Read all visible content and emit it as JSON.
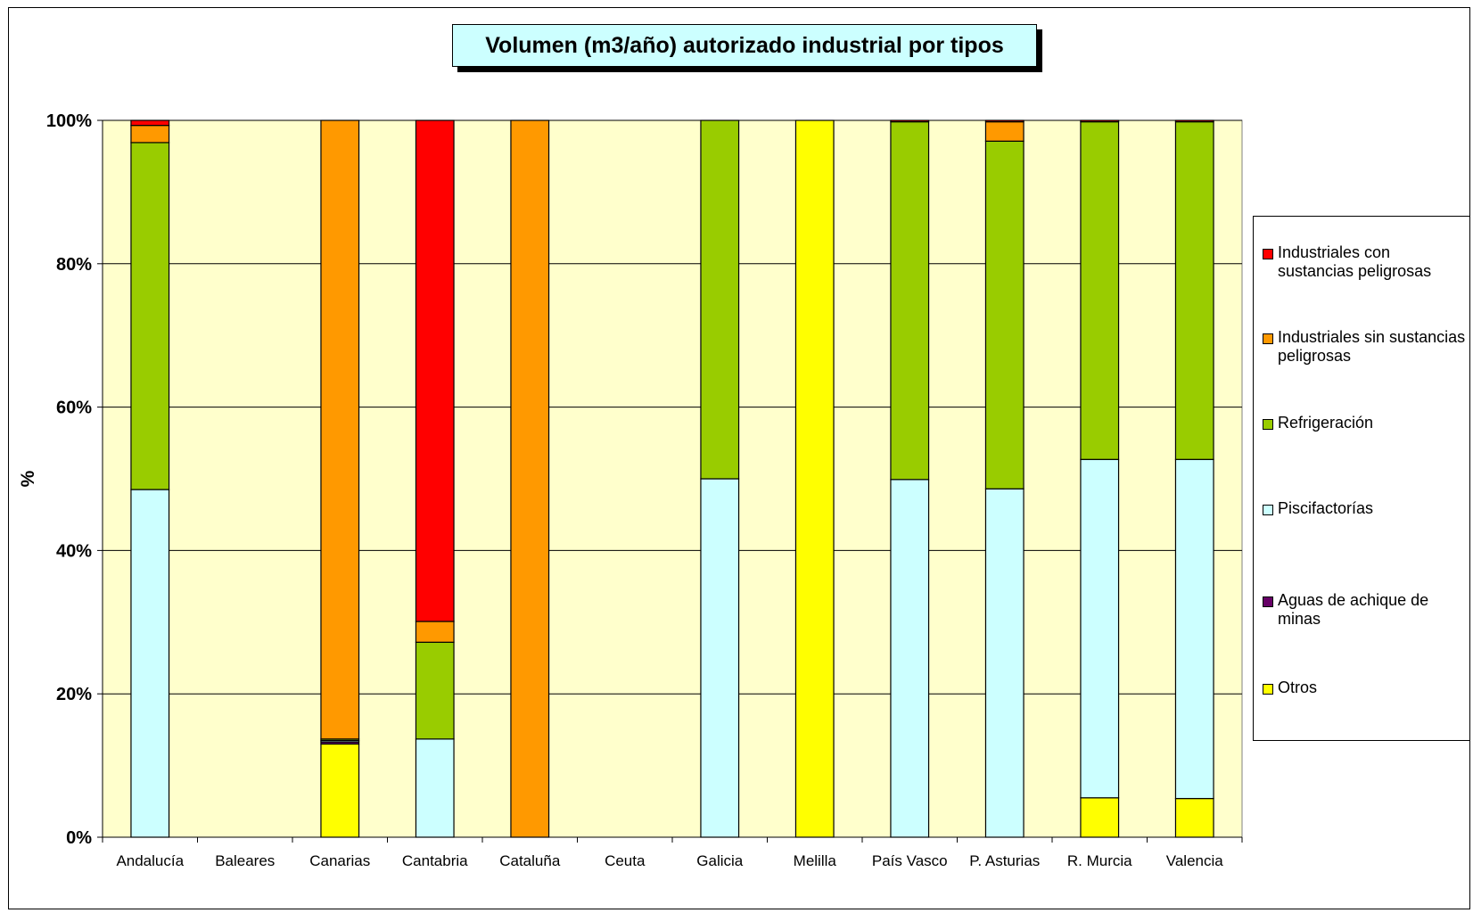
{
  "chart_data": {
    "type": "bar",
    "stacked": "percent",
    "title": "Volumen (m3/año) autorizado industrial por tipos",
    "ylabel": "%",
    "ylim": [
      0,
      100
    ],
    "y_ticks": [
      "0%",
      "20%",
      "40%",
      "60%",
      "80%",
      "100%"
    ],
    "grid": true,
    "legend_position": "right",
    "plot_background": "#ffffcc",
    "categories": [
      "Andalucía",
      "Baleares",
      "Canarias",
      "Cantabria",
      "Cataluña",
      "Ceuta",
      "Galicia",
      "Melilla",
      "País Vasco",
      "P. Asturias",
      "R. Murcia",
      "Valencia"
    ],
    "series": [
      {
        "name": "Otros",
        "color": "#ffff00",
        "values": [
          0,
          0,
          13.0,
          0,
          0,
          0,
          0,
          100,
          0,
          0,
          5.5,
          5.4
        ]
      },
      {
        "name": "Aguas de achique de minas",
        "color": "#660066",
        "values": [
          0,
          0,
          0.3,
          0,
          0,
          0,
          0,
          0,
          0,
          0,
          0,
          0
        ]
      },
      {
        "name": "Piscifactorías",
        "color": "#ccffff",
        "values": [
          48.5,
          0,
          0.2,
          13.7,
          0,
          0,
          50.0,
          0,
          49.9,
          48.6,
          47.2,
          47.3
        ]
      },
      {
        "name": "Refrigeración",
        "color": "#99cc00",
        "values": [
          48.4,
          0,
          0.2,
          13.5,
          0,
          0,
          50.0,
          0,
          49.9,
          48.5,
          47.1,
          47.1
        ]
      },
      {
        "name": "Industriales sin sustancias peligrosas",
        "color": "#ff9900",
        "values": [
          2.4,
          0,
          86.3,
          2.9,
          100,
          0,
          0,
          0,
          0,
          2.7,
          0,
          0
        ]
      },
      {
        "name": "Industriales con sustancias peligrosas",
        "color": "#ff0000",
        "values": [
          0.7,
          0,
          0,
          69.9,
          0,
          0,
          0,
          0,
          0.2,
          0.2,
          0.2,
          0.2
        ]
      }
    ]
  },
  "legend": {
    "items": [
      {
        "label": "Industriales con sustancias peligrosas",
        "color": "#ff0000"
      },
      {
        "label": "Industriales sin sustancias peligrosas",
        "color": "#ff9900"
      },
      {
        "label": "Refrigeración",
        "color": "#99cc00"
      },
      {
        "label": "Piscifactorías",
        "color": "#ccffff"
      },
      {
        "label": "Aguas de achique de minas",
        "color": "#660066"
      },
      {
        "label": "Otros",
        "color": "#ffff00"
      }
    ]
  }
}
